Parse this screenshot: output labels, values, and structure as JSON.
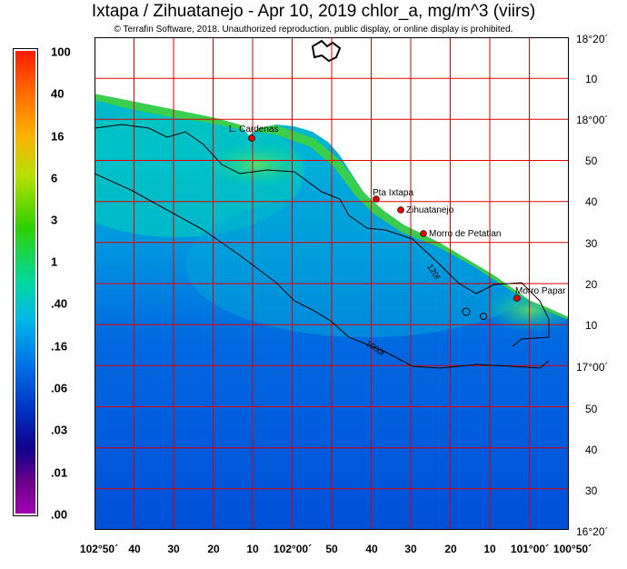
{
  "title": "Ixtapa / Zihuatanejo - Apr 10, 2019  chlor_a, mg/m^3 (viirs)",
  "copyright": "© Terrafin Software,  2018.  Unauthorized reproduction, public display, or online display is prohibited.",
  "colorbar": {
    "labels": [
      "100",
      "40",
      "16",
      "6",
      "3",
      "1",
      ".40",
      ".16",
      ".06",
      ".03",
      ".01",
      ".00"
    ]
  },
  "latitude_labels": [
    "18°20´",
    "10",
    "18°00´",
    "50",
    "40",
    "30",
    "20",
    "10",
    "17°00´",
    "50",
    "40",
    "30",
    "16°20´"
  ],
  "longitude_labels": [
    "102°50´",
    "40",
    "30",
    "20",
    "10",
    "102°00´",
    "50",
    "40",
    "30",
    "20",
    "10",
    "101°00´",
    "100°50´"
  ],
  "places": [
    {
      "name": "L. Cardenas"
    },
    {
      "name": "Pta Ixtapa"
    },
    {
      "name": "Zihuatanejo"
    },
    {
      "name": "Morro de Petatlan"
    },
    {
      "name": "Morro Papar"
    }
  ],
  "isobaths": [
    "120f",
    "1000f"
  ],
  "colors": {
    "grid": "#e00000",
    "land": "#ffffff",
    "marker": "#e00000"
  }
}
